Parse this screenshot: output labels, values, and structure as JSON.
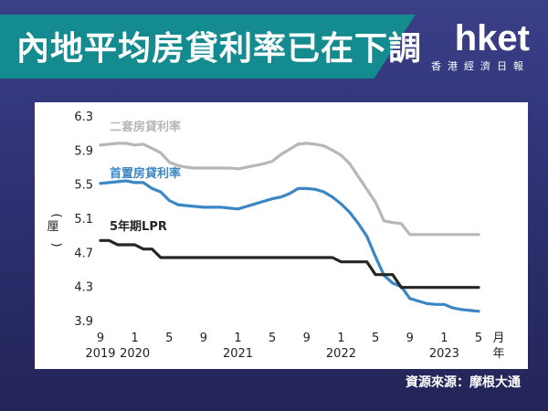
{
  "header": {
    "title": "內地平均房貸利率已在下調"
  },
  "brand": {
    "logo": "hket",
    "subtitle": "香港經濟日報"
  },
  "source": "資源來源：摩根大通",
  "colors": {
    "background": "#2c2f6e",
    "banner": "#138b8f",
    "second_home": "#b7b7b7",
    "first_home": "#3b86c4",
    "lpr": "#262626"
  },
  "chart_data": {
    "type": "line",
    "ylabel": "厘",
    "xlabel": "月\n年",
    "ylim": [
      3.9,
      6.3
    ],
    "yticks": [
      6.3,
      5.9,
      5.5,
      5.1,
      4.7,
      4.3,
      3.9
    ],
    "grid": false,
    "x_ticks": [
      {
        "month": "9",
        "year": "2019"
      },
      {
        "month": "1",
        "year": "2020"
      },
      {
        "month": "5",
        "year": ""
      },
      {
        "month": "9",
        "year": ""
      },
      {
        "month": "1",
        "year": "2021"
      },
      {
        "month": "5",
        "year": ""
      },
      {
        "month": "9",
        "year": ""
      },
      {
        "month": "1",
        "year": "2022"
      },
      {
        "month": "5",
        "year": ""
      },
      {
        "month": "9",
        "year": ""
      },
      {
        "month": "1",
        "year": "2023"
      },
      {
        "month": "5",
        "year": ""
      }
    ],
    "x": [
      "2019-09",
      "2019-10",
      "2019-11",
      "2019-12",
      "2020-01",
      "2020-02",
      "2020-03",
      "2020-04",
      "2020-05",
      "2020-06",
      "2020-07",
      "2020-08",
      "2020-09",
      "2020-10",
      "2020-11",
      "2020-12",
      "2021-01",
      "2021-02",
      "2021-03",
      "2021-04",
      "2021-05",
      "2021-06",
      "2021-07",
      "2021-08",
      "2021-09",
      "2021-10",
      "2021-11",
      "2021-12",
      "2022-01",
      "2022-02",
      "2022-03",
      "2022-04",
      "2022-05",
      "2022-06",
      "2022-07",
      "2022-08",
      "2022-09",
      "2022-10",
      "2022-11",
      "2022-12",
      "2023-01",
      "2023-02",
      "2023-03",
      "2023-04",
      "2023-05"
    ],
    "series": [
      {
        "name": "二套房貸利率",
        "color": "#b7b7b7",
        "values": [
          5.97,
          5.98,
          5.99,
          5.99,
          5.97,
          5.98,
          5.93,
          5.88,
          5.77,
          5.73,
          5.71,
          5.7,
          5.7,
          5.7,
          5.7,
          5.7,
          5.69,
          5.71,
          5.73,
          5.75,
          5.78,
          5.86,
          5.92,
          5.98,
          5.99,
          5.98,
          5.96,
          5.91,
          5.85,
          5.75,
          5.6,
          5.45,
          5.3,
          5.08,
          5.06,
          5.05,
          4.92,
          4.92,
          4.92,
          4.92,
          4.92,
          4.92,
          4.92,
          4.92,
          4.92
        ]
      },
      {
        "name": "首置房貸利率",
        "color": "#3b86c4",
        "values": [
          5.52,
          5.53,
          5.54,
          5.55,
          5.53,
          5.53,
          5.46,
          5.42,
          5.32,
          5.27,
          5.26,
          5.25,
          5.24,
          5.24,
          5.24,
          5.23,
          5.22,
          5.25,
          5.28,
          5.31,
          5.34,
          5.36,
          5.4,
          5.46,
          5.46,
          5.45,
          5.42,
          5.36,
          5.28,
          5.18,
          5.05,
          4.9,
          4.66,
          4.44,
          4.35,
          4.31,
          4.17,
          4.14,
          4.11,
          4.1,
          4.1,
          4.06,
          4.04,
          4.03,
          4.02
        ]
      },
      {
        "name": "5年期LPR",
        "color": "#262626",
        "values": [
          4.85,
          4.85,
          4.8,
          4.8,
          4.8,
          4.75,
          4.75,
          4.65,
          4.65,
          4.65,
          4.65,
          4.65,
          4.65,
          4.65,
          4.65,
          4.65,
          4.65,
          4.65,
          4.65,
          4.65,
          4.65,
          4.65,
          4.65,
          4.65,
          4.65,
          4.65,
          4.65,
          4.65,
          4.6,
          4.6,
          4.6,
          4.6,
          4.45,
          4.45,
          4.45,
          4.3,
          4.3,
          4.3,
          4.3,
          4.3,
          4.3,
          4.3,
          4.3,
          4.3,
          4.3
        ]
      }
    ]
  }
}
